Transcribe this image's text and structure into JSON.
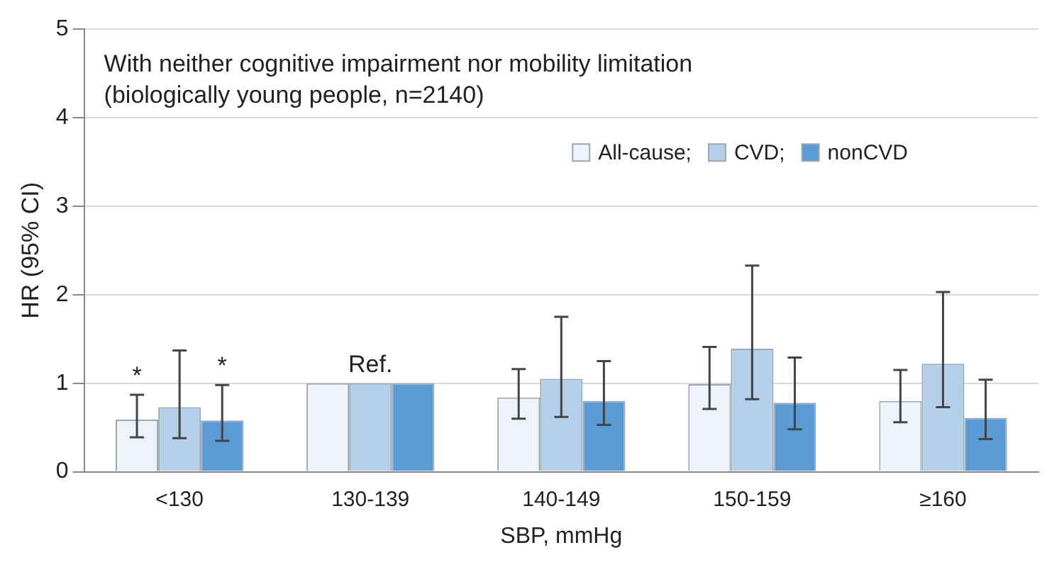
{
  "chart_data": {
    "type": "bar",
    "title": "With neither cognitive impairment nor mobility limitation",
    "subtitle": "(biologically young people, n=2140)",
    "xlabel": "SBP, mmHg",
    "ylabel": "HR (95% CI)",
    "categories": [
      "<130",
      "130-139",
      "140-149",
      "150-159",
      "≥160"
    ],
    "series": [
      {
        "name": "All-cause;",
        "color": "#eef3f9",
        "values": [
          0.59,
          1,
          0.84,
          0.99,
          0.8
        ],
        "errors": [
          [
            0.39,
            0.87
          ],
          null,
          [
            0.6,
            1.16
          ],
          [
            0.71,
            1.41
          ],
          [
            0.56,
            1.15
          ]
        ]
      },
      {
        "name": "CVD;",
        "color": "#b4cfea",
        "values": [
          0.73,
          1,
          1.05,
          1.39,
          1.22
        ],
        "errors": [
          [
            0.38,
            1.37
          ],
          null,
          [
            0.62,
            1.75
          ],
          [
            0.82,
            2.33
          ],
          [
            0.73,
            2.03
          ]
        ]
      },
      {
        "name": "nonCVD",
        "color": "#5b9bd5",
        "values": [
          0.58,
          1,
          0.8,
          0.78,
          0.61
        ],
        "errors": [
          [
            0.35,
            0.98
          ],
          null,
          [
            0.53,
            1.25
          ],
          [
            0.48,
            1.29
          ],
          [
            0.37,
            1.04
          ]
        ]
      }
    ],
    "ylim": [
      0,
      5
    ],
    "yticks": [
      0,
      1,
      2,
      3,
      4,
      5
    ],
    "grid": "y",
    "legend": "top right",
    "annotations": [
      {
        "text": "*",
        "x": "<130",
        "y": 0.87
      },
      {
        "text": "*",
        "x": "<130",
        "y": 0.98
      },
      {
        "text": "Ref.",
        "x": "130-139",
        "y": 1
      }
    ]
  }
}
